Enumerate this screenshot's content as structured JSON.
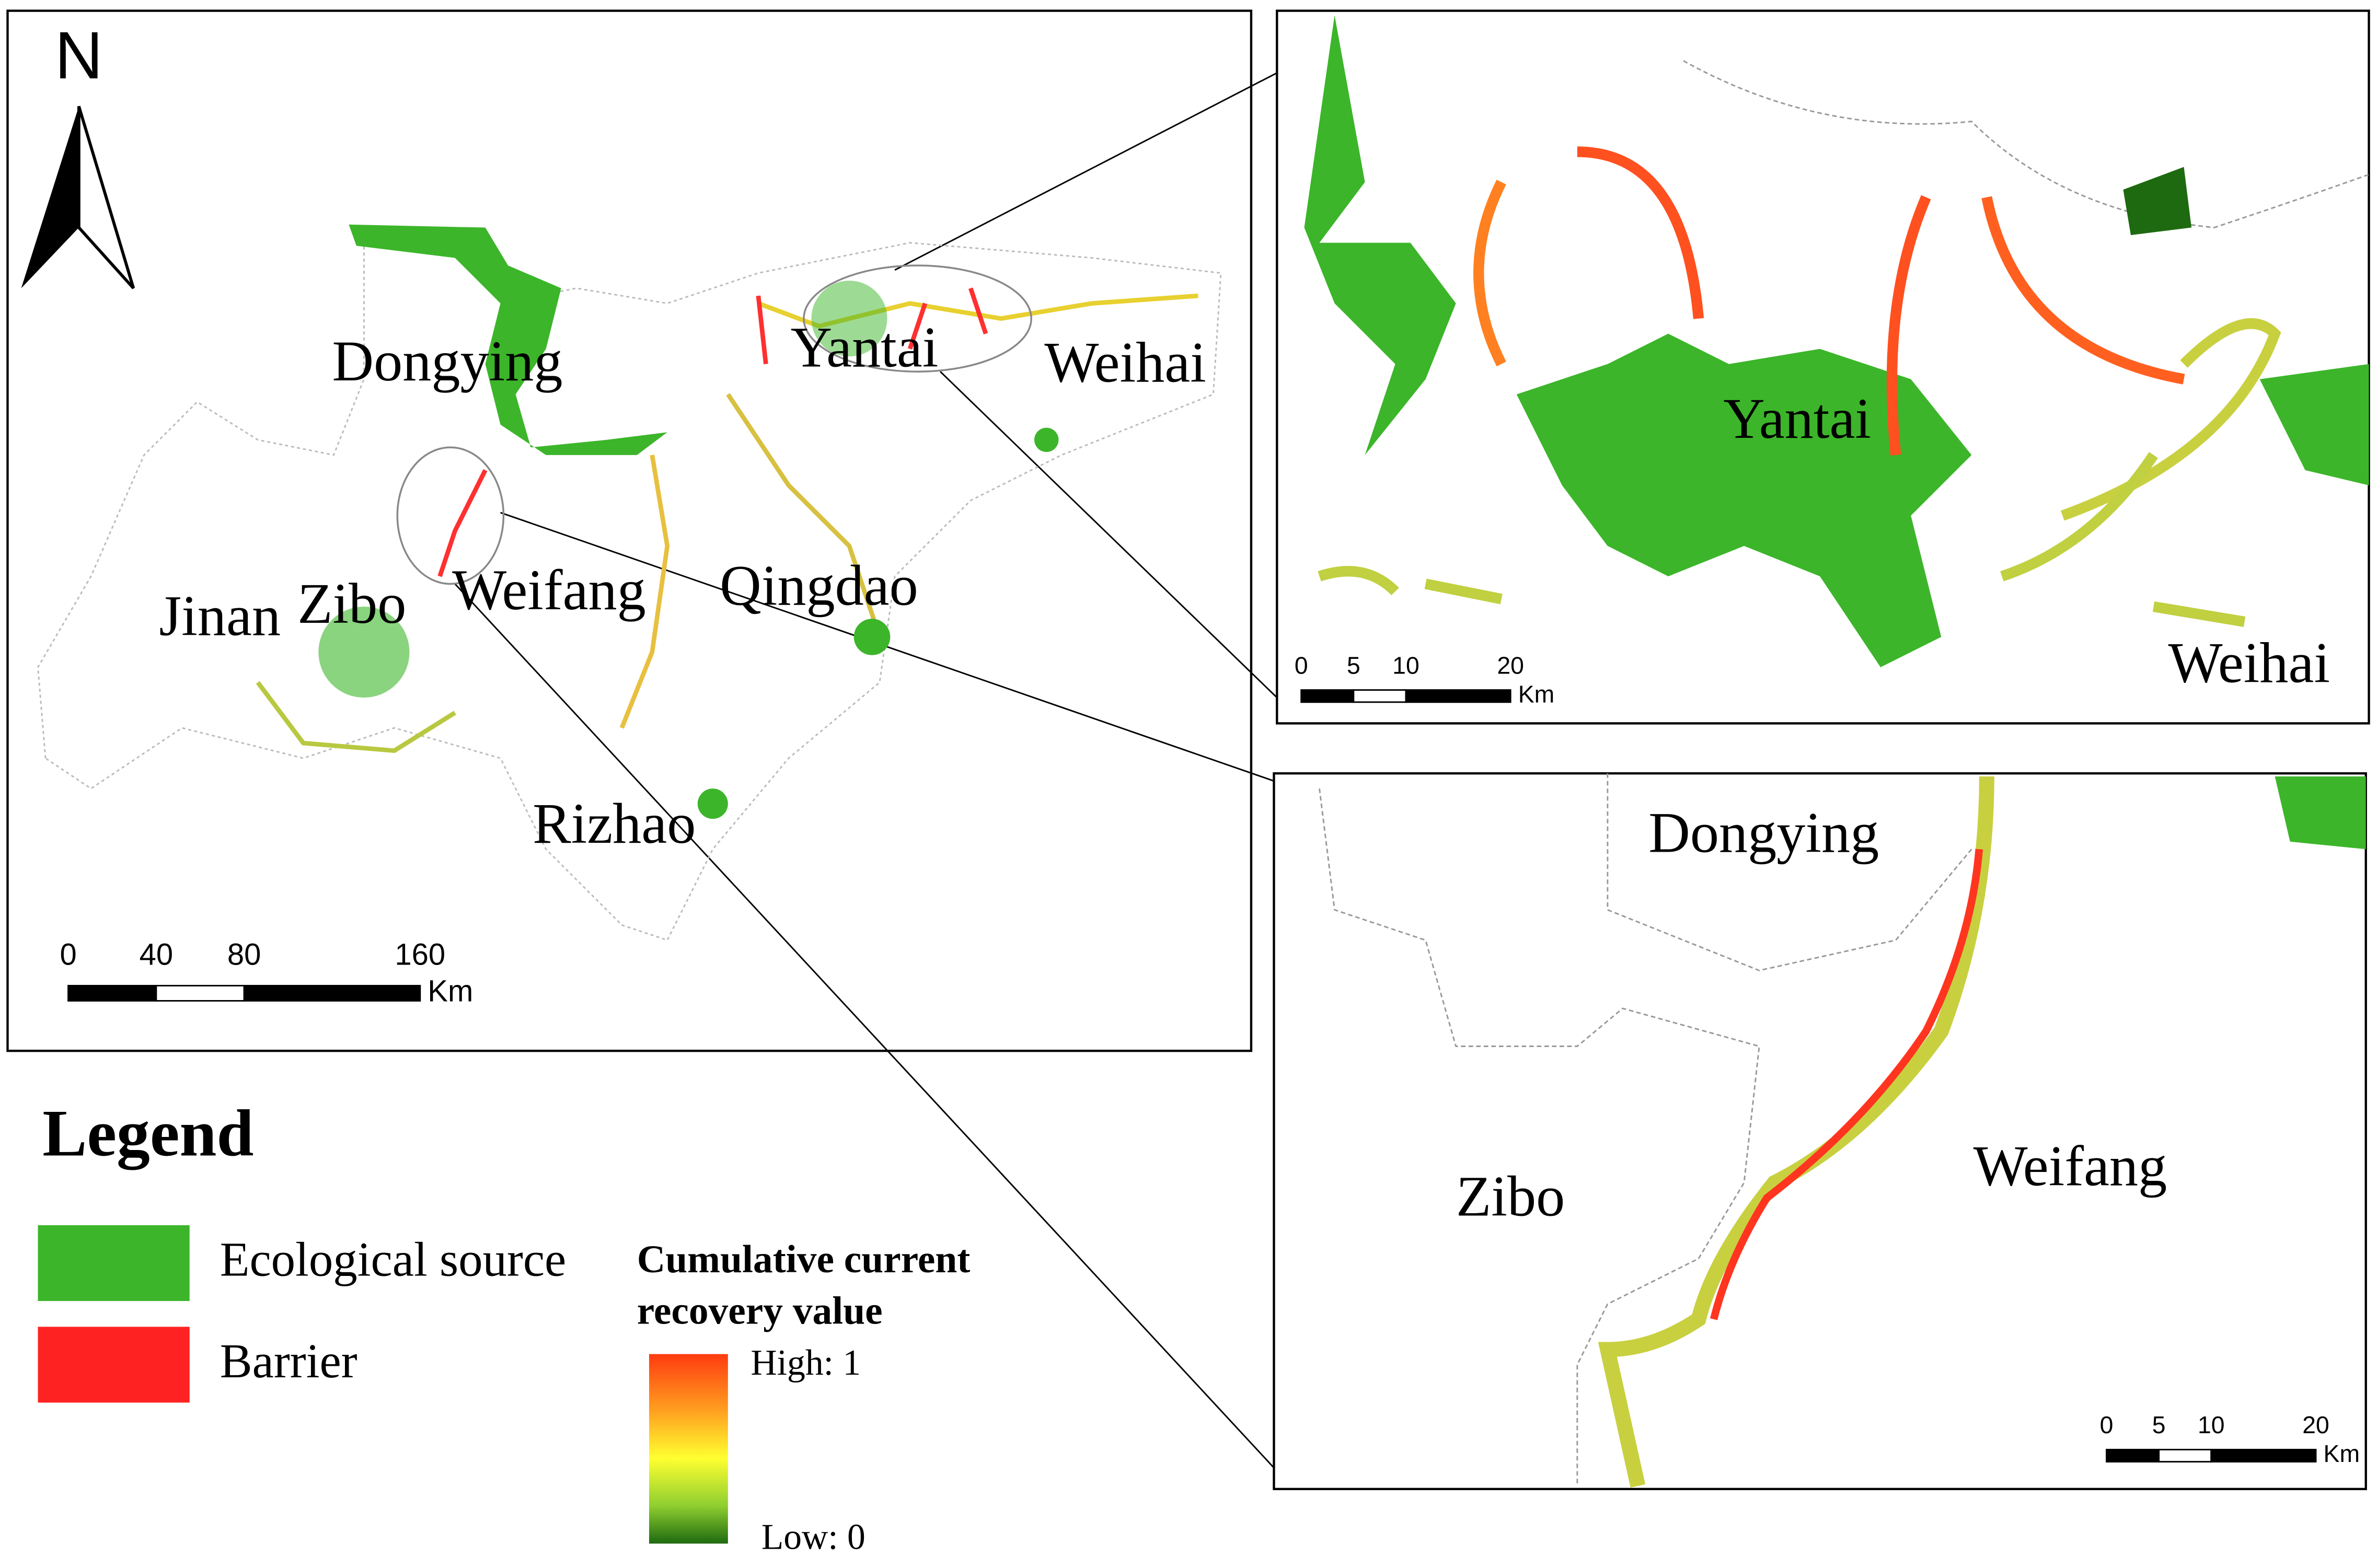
{
  "north_arrow": "N",
  "main_map": {
    "cities": [
      "Dongying",
      "Yantai",
      "Weihai",
      "Jinan",
      "Zibo",
      "Weifang",
      "Qingdao",
      "Rizhao"
    ],
    "scale_bar": {
      "ticks": [
        0,
        40,
        80,
        160
      ],
      "unit": "Km"
    }
  },
  "inset_top": {
    "cities": [
      "Yantai",
      "Weihai"
    ],
    "scale_bar": {
      "ticks": [
        0,
        5,
        10,
        20
      ],
      "unit": "Km"
    }
  },
  "inset_bottom": {
    "cities": [
      "Dongying",
      "Zibo",
      "Weifang"
    ],
    "scale_bar": {
      "ticks": [
        0,
        5,
        10,
        20
      ],
      "unit": "Km"
    }
  },
  "legend": {
    "title": "Legend",
    "items": [
      {
        "label": "Ecological source",
        "color": "#3cb52a"
      },
      {
        "label": "Barrier",
        "color": "#ff2222"
      }
    ],
    "colorbar": {
      "title_lines": [
        "Cumulative current",
        "recovery value"
      ],
      "high": "High: 1",
      "low": "Low: 0"
    }
  }
}
